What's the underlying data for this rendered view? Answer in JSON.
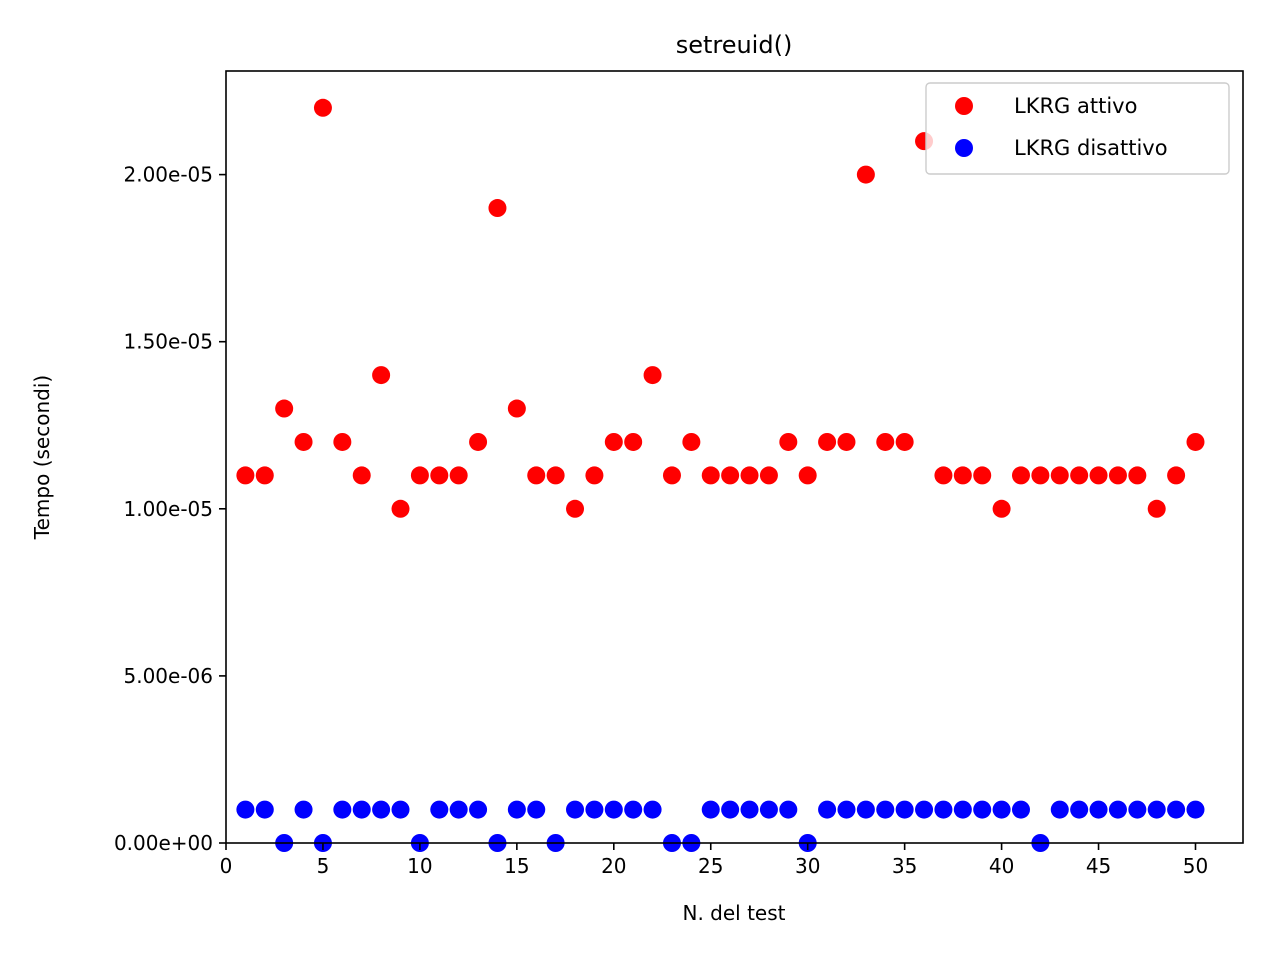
{
  "chart_data": {
    "type": "scatter",
    "title": "setreuid()",
    "xlabel": "N. del test",
    "ylabel": "Tempo (secondi)",
    "xlim": [
      0,
      52.45
    ],
    "ylim": [
      0,
      2.31e-05
    ],
    "x_ticks": [
      0,
      5,
      10,
      15,
      20,
      25,
      30,
      35,
      40,
      45,
      50
    ],
    "x_tick_labels": [
      "0",
      "5",
      "10",
      "15",
      "20",
      "25",
      "30",
      "35",
      "40",
      "45",
      "50"
    ],
    "y_ticks": [
      0,
      5e-06,
      1e-05,
      1.5e-05,
      2e-05
    ],
    "y_tick_labels": [
      "0.00e+00",
      "5.00e-06",
      "1.00e-05",
      "1.50e-05",
      "2.00e-05"
    ],
    "grid": false,
    "legend_position": "top-right",
    "x": [
      1,
      2,
      3,
      4,
      5,
      6,
      7,
      8,
      9,
      10,
      11,
      12,
      13,
      14,
      15,
      16,
      17,
      18,
      19,
      20,
      21,
      22,
      23,
      24,
      25,
      26,
      27,
      28,
      29,
      30,
      31,
      32,
      33,
      34,
      35,
      36,
      37,
      38,
      39,
      40,
      41,
      42,
      43,
      44,
      45,
      46,
      47,
      48,
      49,
      50
    ],
    "series": [
      {
        "name": "LKRG attivo",
        "color": "#ff0000",
        "values": [
          1.1e-05,
          1.1e-05,
          1.3e-05,
          1.2e-05,
          2.2e-05,
          1.2e-05,
          1.1e-05,
          1.4e-05,
          1e-05,
          1.1e-05,
          1.1e-05,
          1.1e-05,
          1.2e-05,
          1.9e-05,
          1.3e-05,
          1.1e-05,
          1.1e-05,
          1e-05,
          1.1e-05,
          1.2e-05,
          1.2e-05,
          1.4e-05,
          1.1e-05,
          1.2e-05,
          1.1e-05,
          1.1e-05,
          1.1e-05,
          1.1e-05,
          1.2e-05,
          1.1e-05,
          1.2e-05,
          1.2e-05,
          2e-05,
          1.2e-05,
          1.2e-05,
          2.1e-05,
          1.1e-05,
          1.1e-05,
          1.1e-05,
          1e-05,
          1.1e-05,
          1.1e-05,
          1.1e-05,
          1.1e-05,
          1.1e-05,
          1.1e-05,
          1.1e-05,
          1e-05,
          1.1e-05,
          1.2e-05
        ]
      },
      {
        "name": "LKRG disattivo",
        "color": "#0000ff",
        "values": [
          1e-06,
          1e-06,
          0,
          1e-06,
          0,
          1e-06,
          1e-06,
          1e-06,
          1e-06,
          0,
          1e-06,
          1e-06,
          1e-06,
          0,
          1e-06,
          1e-06,
          0,
          1e-06,
          1e-06,
          1e-06,
          1e-06,
          1e-06,
          0,
          0,
          1e-06,
          1e-06,
          1e-06,
          1e-06,
          1e-06,
          0,
          1e-06,
          1e-06,
          1e-06,
          1e-06,
          1e-06,
          1e-06,
          1e-06,
          1e-06,
          1e-06,
          1e-06,
          1e-06,
          0,
          1e-06,
          1e-06,
          1e-06,
          1e-06,
          1e-06,
          1e-06,
          1e-06,
          1e-06
        ]
      }
    ]
  }
}
